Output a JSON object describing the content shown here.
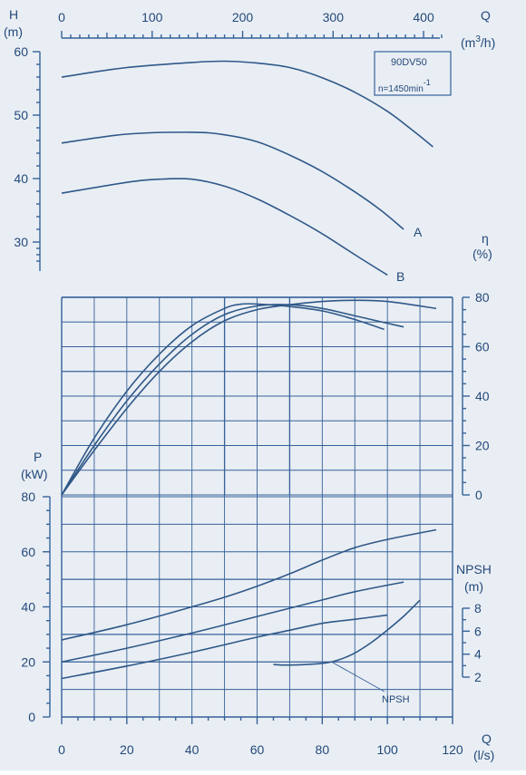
{
  "chart_data": {
    "type": "line",
    "model_box": {
      "model": "90DV50",
      "speed": "n=1450min",
      "speed_sup": "-1"
    },
    "top_axis": {
      "var": "Q",
      "unit": "(m",
      "unit_sup": "3",
      "unit_end": "/h)",
      "min": 0,
      "max": 420,
      "ticks": [
        0,
        100,
        200,
        300,
        400
      ]
    },
    "bottom_axis": {
      "var": "Q",
      "unit": "(l/s)",
      "min": 0,
      "max": 120,
      "ticks": [
        0,
        20,
        40,
        60,
        80,
        100,
        120
      ]
    },
    "head_axis": {
      "var": "H",
      "unit": "(m)",
      "ticks": [
        30,
        40,
        50,
        60
      ]
    },
    "eff_axis": {
      "var": "η",
      "unit": "(%)",
      "ticks": [
        0,
        20,
        40,
        60,
        80
      ]
    },
    "power_axis": {
      "var": "P",
      "unit": "(kW)",
      "ticks": [
        0,
        20,
        40,
        60,
        80
      ]
    },
    "npsh_axis": {
      "var": "NPSH",
      "unit": "(m)",
      "ticks": [
        2,
        4,
        6,
        8
      ]
    },
    "head_series": [
      {
        "name": "",
        "points": [
          [
            0,
            56
          ],
          [
            20,
            57.5
          ],
          [
            40,
            58.3
          ],
          [
            50,
            58.5
          ],
          [
            60,
            58.2
          ],
          [
            70,
            57.5
          ],
          [
            80,
            55.9
          ],
          [
            90,
            53.6
          ],
          [
            100,
            50.6
          ],
          [
            108,
            47.5
          ],
          [
            114,
            45
          ]
        ]
      },
      {
        "name": "A",
        "points": [
          [
            0,
            45.6
          ],
          [
            20,
            47
          ],
          [
            40,
            47.3
          ],
          [
            50,
            46.9
          ],
          [
            60,
            45.8
          ],
          [
            70,
            43.7
          ],
          [
            80,
            41.1
          ],
          [
            90,
            37.9
          ],
          [
            98,
            35
          ],
          [
            105,
            32
          ]
        ]
      },
      {
        "name": "B",
        "points": [
          [
            0,
            37.7
          ],
          [
            20,
            39.4
          ],
          [
            30,
            39.9
          ],
          [
            40,
            39.9
          ],
          [
            50,
            38.8
          ],
          [
            60,
            36.8
          ],
          [
            70,
            34.2
          ],
          [
            80,
            31.3
          ],
          [
            90,
            28
          ],
          [
            100,
            24.8
          ]
        ]
      }
    ],
    "efficiency_series": [
      {
        "name": "",
        "points": [
          [
            0,
            0
          ],
          [
            10,
            23
          ],
          [
            20,
            42
          ],
          [
            30,
            57
          ],
          [
            40,
            68.5
          ],
          [
            50,
            75.5
          ],
          [
            55,
            77.2
          ],
          [
            60,
            77.3
          ],
          [
            70,
            76.3
          ],
          [
            80,
            74.5
          ],
          [
            90,
            71
          ],
          [
            99,
            67
          ]
        ]
      },
      {
        "name": "",
        "points": [
          [
            0,
            0
          ],
          [
            10,
            20
          ],
          [
            20,
            38
          ],
          [
            30,
            53
          ],
          [
            40,
            65
          ],
          [
            50,
            73
          ],
          [
            60,
            76.5
          ],
          [
            70,
            77
          ],
          [
            80,
            75.5
          ],
          [
            90,
            72.5
          ],
          [
            105,
            68
          ]
        ]
      },
      {
        "name": "",
        "points": [
          [
            0,
            0
          ],
          [
            10,
            18
          ],
          [
            20,
            35
          ],
          [
            30,
            50
          ],
          [
            40,
            62
          ],
          [
            50,
            70.5
          ],
          [
            60,
            75
          ],
          [
            70,
            77
          ],
          [
            80,
            78.3
          ],
          [
            90,
            78.8
          ],
          [
            100,
            78.3
          ],
          [
            115,
            75.5
          ]
        ]
      }
    ],
    "power_series": [
      {
        "name": "",
        "points": [
          [
            0,
            28
          ],
          [
            20,
            33.5
          ],
          [
            40,
            40
          ],
          [
            50,
            43.5
          ],
          [
            60,
            47.5
          ],
          [
            70,
            52
          ],
          [
            80,
            57
          ],
          [
            90,
            61.5
          ],
          [
            100,
            64.5
          ],
          [
            115,
            68
          ]
        ]
      },
      {
        "name": "",
        "points": [
          [
            0,
            20
          ],
          [
            20,
            25
          ],
          [
            40,
            30.5
          ],
          [
            60,
            36.5
          ],
          [
            70,
            39.5
          ],
          [
            80,
            42.5
          ],
          [
            90,
            45.5
          ],
          [
            105,
            49
          ]
        ]
      },
      {
        "name": "",
        "points": [
          [
            0,
            14
          ],
          [
            20,
            18.5
          ],
          [
            40,
            23.5
          ],
          [
            60,
            29
          ],
          [
            70,
            31.5
          ],
          [
            80,
            34
          ],
          [
            90,
            35.5
          ],
          [
            100,
            37
          ]
        ]
      }
    ],
    "npsh_series": [
      {
        "name": "NPSH",
        "label": "NPSH",
        "points": [
          [
            65,
            3.1
          ],
          [
            70,
            3.05
          ],
          [
            80,
            3.2
          ],
          [
            85,
            3.5
          ],
          [
            90,
            4.1
          ],
          [
            95,
            5
          ],
          [
            100,
            6.1
          ],
          [
            105,
            7.3
          ],
          [
            110,
            8.7
          ]
        ]
      }
    ],
    "series_labels": {
      "A": "A",
      "B": "B",
      "npsh": "NPSH"
    }
  }
}
